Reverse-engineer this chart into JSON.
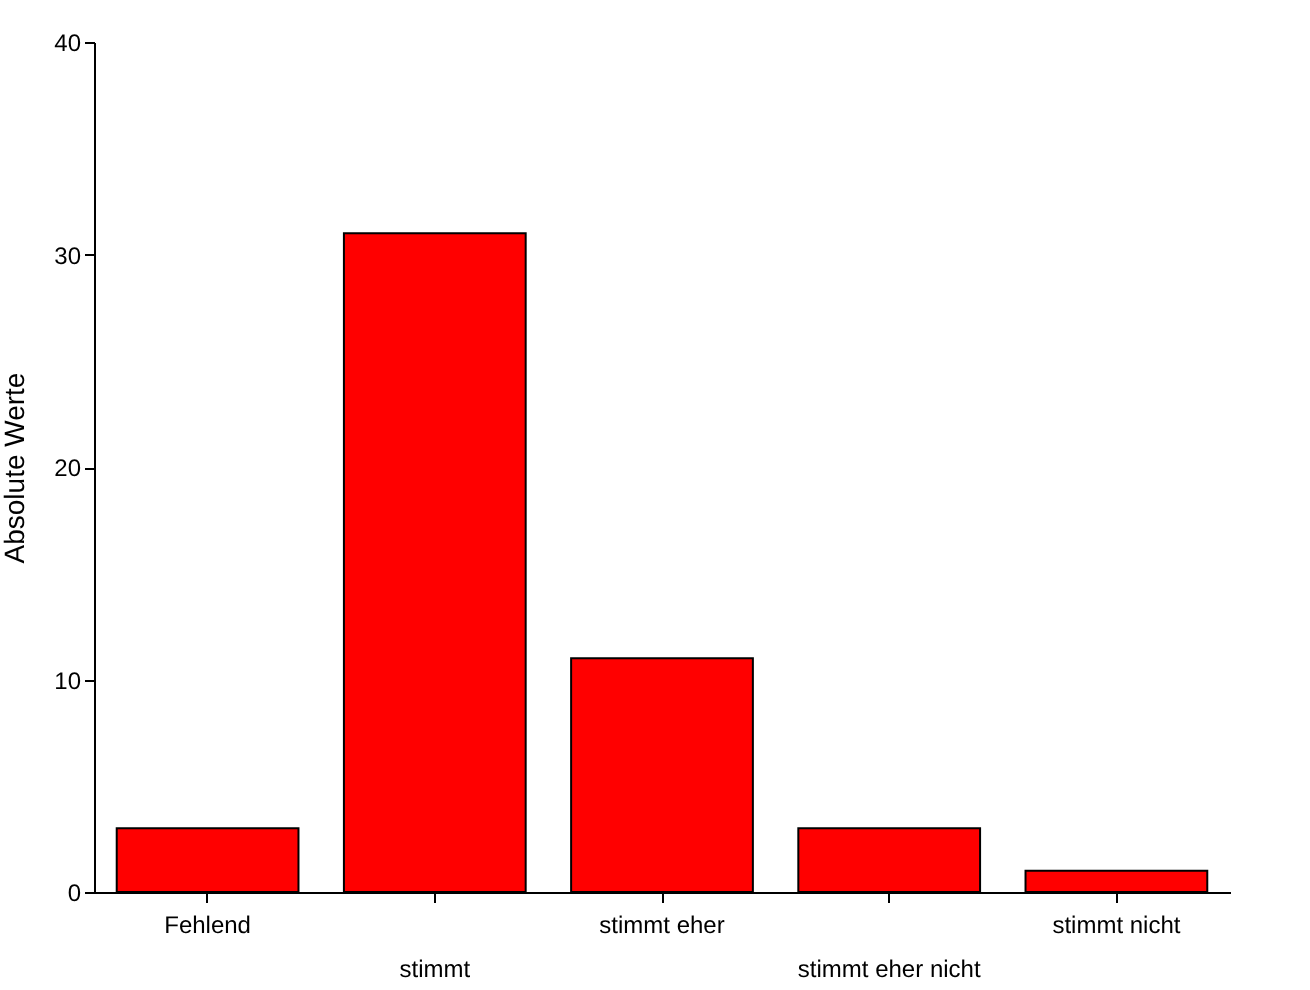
{
  "chart_data": {
    "type": "bar",
    "ylabel": "Absolute Werte",
    "categories": [
      "Fehlend",
      "stimmt",
      "stimmt eher",
      "stimmt eher nicht",
      "stimmt nicht"
    ],
    "values": [
      3,
      31,
      11,
      3,
      1
    ],
    "color": "#ff0000",
    "ylim": [
      0,
      40
    ],
    "yticks": [
      0,
      10,
      20,
      30,
      40
    ],
    "grid": false
  }
}
